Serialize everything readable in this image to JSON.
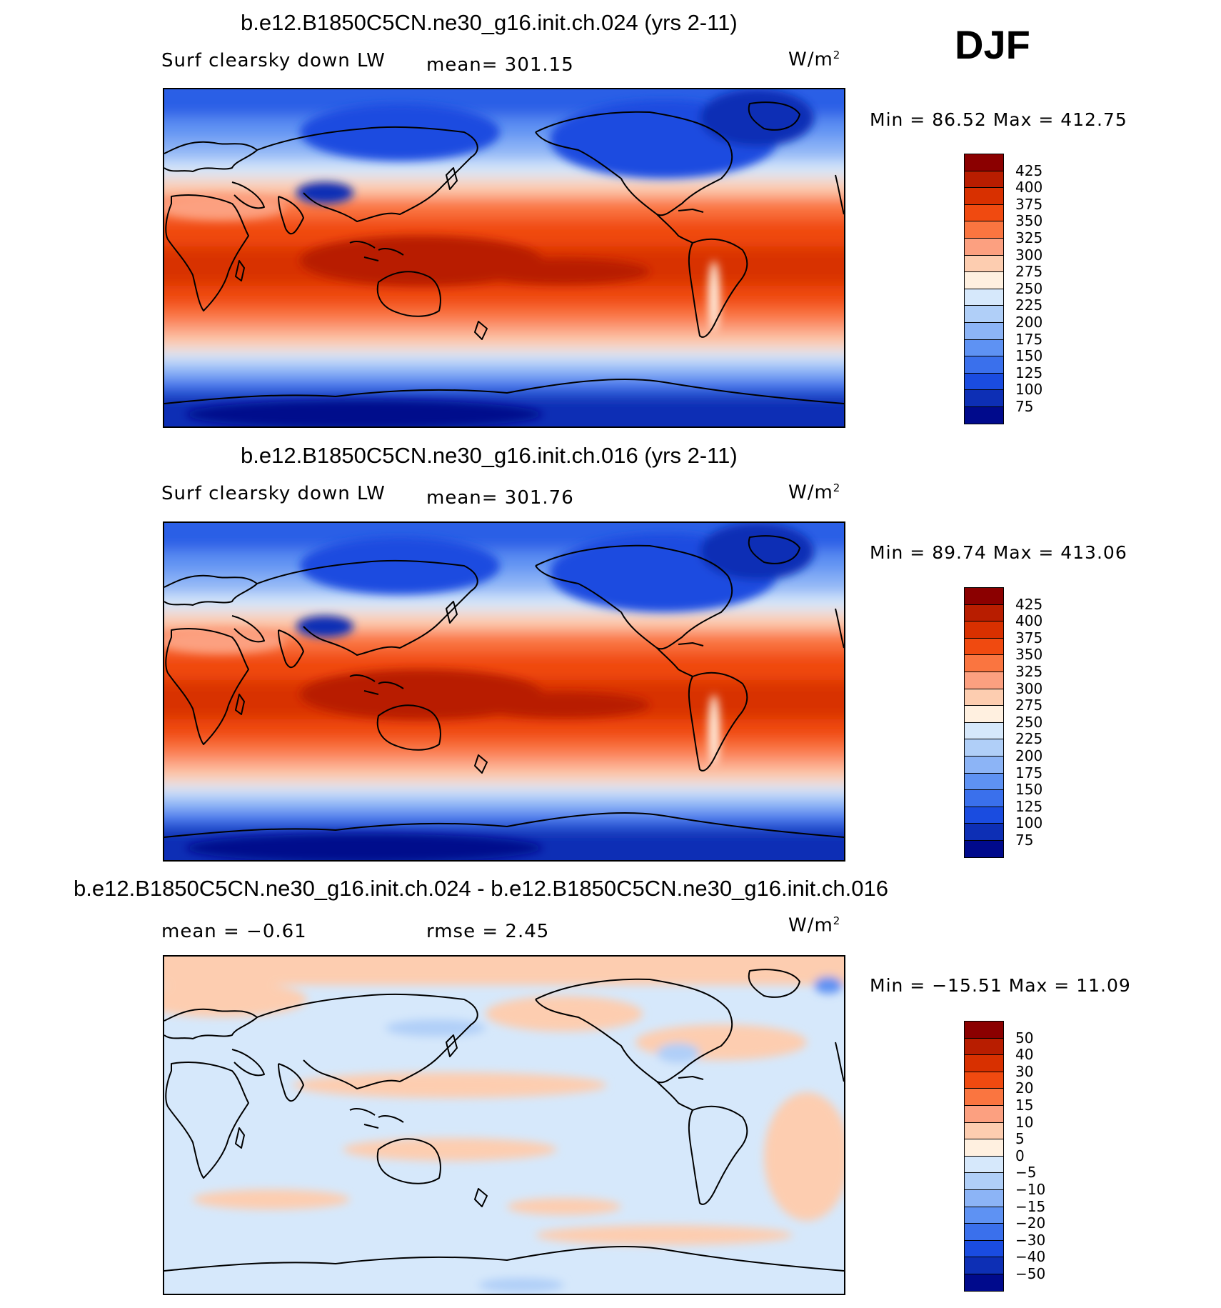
{
  "season": "DJF",
  "units_base": "W/m",
  "units_sup": "2",
  "panels": [
    {
      "title": "b.e12.B1850C5CN.ne30_g16.init.ch.024 (yrs 2-11)",
      "left_label": "Surf clearsky down LW",
      "mid_label": "mean= 301.15",
      "minmax": "Min =   86.52  Max  =  412.75",
      "field": "absolute"
    },
    {
      "title": "b.e12.B1850C5CN.ne30_g16.init.ch.016 (yrs 2-11)",
      "left_label": "Surf clearsky down LW",
      "mid_label": "mean= 301.76",
      "minmax": "Min =   89.74  Max  =  413.06",
      "field": "absolute"
    },
    {
      "title": "b.e12.B1850C5CN.ne30_g16.init.ch.024 - b.e12.B1850C5CN.ne30_g16.init.ch.016",
      "left_label": "mean =   −0.61",
      "mid_label": "rmse =     2.45",
      "minmax": "Min = −15.51  Max  =    11.09",
      "field": "difference"
    }
  ],
  "colorbar_abs": {
    "labels": [
      "425",
      "400",
      "375",
      "350",
      "325",
      "300",
      "275",
      "250",
      "225",
      "200",
      "175",
      "150",
      "125",
      "100",
      "75"
    ],
    "colors": [
      "#8b0000",
      "#b81d00",
      "#d83000",
      "#f04a10",
      "#fa7540",
      "#fca080",
      "#fdcdb0",
      "#fff0e0",
      "#d6e8fb",
      "#b0cff8",
      "#8cb4f6",
      "#5e92f3",
      "#3a70ec",
      "#1a4ce0",
      "#0d2fb5",
      "#000a8c"
    ]
  },
  "colorbar_diff": {
    "labels": [
      "50",
      "40",
      "30",
      "20",
      "15",
      "10",
      "5",
      "0",
      "−5",
      "−10",
      "−15",
      "−20",
      "−30",
      "−40",
      "−50"
    ],
    "colors": [
      "#8b0000",
      "#b81d00",
      "#d83000",
      "#f04a10",
      "#fa7540",
      "#fca080",
      "#fdcdb0",
      "#fff0e0",
      "#d6e8fb",
      "#b0cff8",
      "#8cb4f6",
      "#5e92f3",
      "#3a70ec",
      "#1a4ce0",
      "#0d2fb5",
      "#000a8c"
    ]
  },
  "chart_data": [
    {
      "type": "heatmap",
      "title": "b.e12.B1850C5CN.ne30_g16.init.ch.024 (yrs 2-11)",
      "variable": "Surf clearsky down LW",
      "units": "W/m2",
      "mean": 301.15,
      "min": 86.52,
      "max": 412.75,
      "contour_levels": [
        75,
        100,
        125,
        150,
        175,
        200,
        225,
        250,
        275,
        300,
        325,
        350,
        375,
        400,
        425
      ]
    },
    {
      "type": "heatmap",
      "title": "b.e12.B1850C5CN.ne30_g16.init.ch.016 (yrs 2-11)",
      "variable": "Surf clearsky down LW",
      "units": "W/m2",
      "mean": 301.76,
      "min": 89.74,
      "max": 413.06,
      "contour_levels": [
        75,
        100,
        125,
        150,
        175,
        200,
        225,
        250,
        275,
        300,
        325,
        350,
        375,
        400,
        425
      ]
    },
    {
      "type": "heatmap",
      "title": "b.e12.B1850C5CN.ne30_g16.init.ch.024 - b.e12.B1850C5CN.ne30_g16.init.ch.016",
      "units": "W/m2",
      "mean": -0.61,
      "rmse": 2.45,
      "min": -15.51,
      "max": 11.09,
      "contour_levels": [
        -50,
        -40,
        -30,
        -20,
        -15,
        -10,
        -5,
        0,
        5,
        10,
        15,
        20,
        30,
        40,
        50
      ]
    }
  ]
}
